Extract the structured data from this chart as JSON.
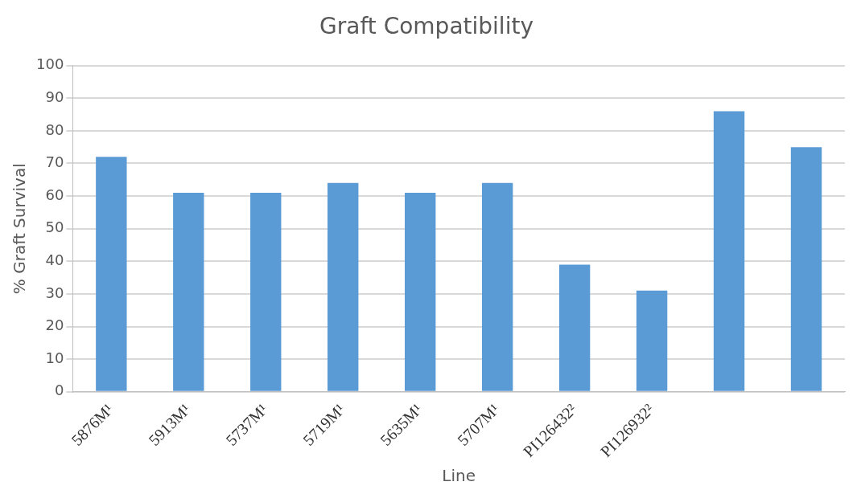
{
  "chart_data": {
    "type": "bar",
    "title": "Graft Compatibility",
    "xlabel": "Line",
    "ylabel": "% Graft Survival",
    "categories": [
      "5876M¹",
      "5913M¹",
      "5737M¹",
      "5719M¹",
      "5635M¹",
      "5707M¹",
      "PI126432²",
      "PI126932²",
      null,
      null
    ],
    "values": [
      72,
      61,
      61,
      64,
      61,
      64,
      39,
      31,
      86,
      75
    ],
    "color": "#5b9bd5",
    "ylim": [
      0,
      100
    ],
    "yticks": [
      0,
      10,
      20,
      30,
      40,
      50,
      60,
      70,
      80,
      90,
      100
    ],
    "grid": "y",
    "legend": false
  }
}
